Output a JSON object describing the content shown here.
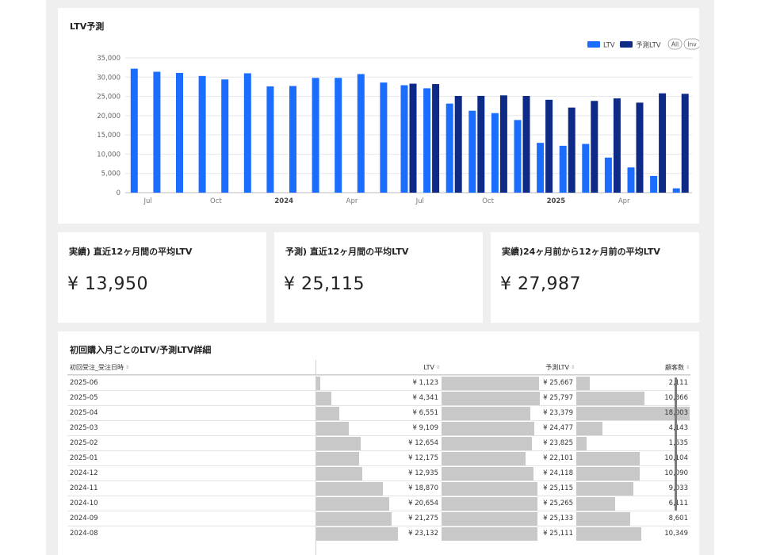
{
  "chart": {
    "title": "LTV予測",
    "legend": [
      {
        "label": "LTV",
        "color": "#1a6dff"
      },
      {
        "label": "予測LTV",
        "color": "#0d2a87"
      }
    ],
    "buttons": {
      "all": "All",
      "inv": "Inv"
    }
  },
  "chart_data": {
    "type": "bar",
    "title": "LTV予測",
    "xlabel": "",
    "ylabel": "",
    "ylim": [
      0,
      35000
    ],
    "y_ticks": [
      "0",
      "5,000",
      "10,000",
      "15,000",
      "20,000",
      "25,000",
      "30,000",
      "35,000"
    ],
    "x_tick_labels": [
      {
        "label": "Jul",
        "month": "2023-07",
        "bold": false
      },
      {
        "label": "Oct",
        "month": "2023-10",
        "bold": false
      },
      {
        "label": "2024",
        "month": "2024-01",
        "bold": true
      },
      {
        "label": "Apr",
        "month": "2024-04",
        "bold": false
      },
      {
        "label": "Jul",
        "month": "2024-07",
        "bold": false
      },
      {
        "label": "Oct",
        "month": "2024-10",
        "bold": false
      },
      {
        "label": "2025",
        "month": "2025-01",
        "bold": true
      },
      {
        "label": "Apr",
        "month": "2025-04",
        "bold": false
      }
    ],
    "categories": [
      "2023-06",
      "2023-07",
      "2023-08",
      "2023-09",
      "2023-10",
      "2023-11",
      "2023-12",
      "2024-01",
      "2024-02",
      "2024-03",
      "2024-04",
      "2024-05",
      "2024-06",
      "2024-07",
      "2024-08",
      "2024-09",
      "2024-10",
      "2024-11",
      "2024-12",
      "2025-01",
      "2025-02",
      "2025-03",
      "2025-04",
      "2025-05",
      "2025-06"
    ],
    "series": [
      {
        "name": "LTV",
        "color": "#1a6dff",
        "values": [
          32200,
          31400,
          31100,
          30300,
          29400,
          31000,
          27600,
          27700,
          29800,
          29800,
          30800,
          28600,
          27900,
          27100,
          23132,
          21275,
          20654,
          18870,
          12935,
          12175,
          12654,
          9109,
          6551,
          4341,
          1123
        ]
      },
      {
        "name": "予測LTV",
        "color": "#0d2a87",
        "values": [
          null,
          null,
          null,
          null,
          null,
          null,
          null,
          null,
          null,
          null,
          null,
          null,
          28300,
          28200,
          25111,
          25133,
          25265,
          25115,
          24118,
          22101,
          23825,
          24477,
          23379,
          25797,
          25667
        ]
      }
    ],
    "grid": true,
    "legend_position": "top-right"
  },
  "kpis": [
    {
      "title": "実績) 直近12ヶ月間の平均LTV",
      "value": "¥ 13,950"
    },
    {
      "title": "予測) 直近12ヶ月間の平均LTV",
      "value": "¥ 25,115"
    },
    {
      "title": "実績)24ヶ月前から12ヶ月前の平均LTV",
      "value": "¥ 27,987"
    }
  ],
  "table": {
    "title": "初回購入月ごとのLTV/予測LTV詳細",
    "columns": [
      "初回受注_受注日時",
      "LTV",
      "予測LTV",
      "顧客数"
    ],
    "max_ltv": 35000,
    "max_pred": 35000,
    "max_customers": 18003,
    "rows": [
      {
        "date": "2025-06",
        "ltv": "¥ 1,123",
        "ltv_n": 1123,
        "pred": "¥ 25,667",
        "pred_n": 25667,
        "cust": "2,111",
        "cust_n": 2111
      },
      {
        "date": "2025-05",
        "ltv": "¥ 4,341",
        "ltv_n": 4341,
        "pred": "¥ 25,797",
        "pred_n": 25797,
        "cust": "10,866",
        "cust_n": 10866
      },
      {
        "date": "2025-04",
        "ltv": "¥ 6,551",
        "ltv_n": 6551,
        "pred": "¥ 23,379",
        "pred_n": 23379,
        "cust": "18,003",
        "cust_n": 18003
      },
      {
        "date": "2025-03",
        "ltv": "¥ 9,109",
        "ltv_n": 9109,
        "pred": "¥ 24,477",
        "pred_n": 24477,
        "cust": "4,143",
        "cust_n": 4143
      },
      {
        "date": "2025-02",
        "ltv": "¥ 12,654",
        "ltv_n": 12654,
        "pred": "¥ 23,825",
        "pred_n": 23825,
        "cust": "1,635",
        "cust_n": 1635
      },
      {
        "date": "2025-01",
        "ltv": "¥ 12,175",
        "ltv_n": 12175,
        "pred": "¥ 22,101",
        "pred_n": 22101,
        "cust": "10,104",
        "cust_n": 10104
      },
      {
        "date": "2024-12",
        "ltv": "¥ 12,935",
        "ltv_n": 12935,
        "pred": "¥ 24,118",
        "pred_n": 24118,
        "cust": "10,090",
        "cust_n": 10090
      },
      {
        "date": "2024-11",
        "ltv": "¥ 18,870",
        "ltv_n": 18870,
        "pred": "¥ 25,115",
        "pred_n": 25115,
        "cust": "9,033",
        "cust_n": 9033
      },
      {
        "date": "2024-10",
        "ltv": "¥ 20,654",
        "ltv_n": 20654,
        "pred": "¥ 25,265",
        "pred_n": 25265,
        "cust": "6,111",
        "cust_n": 6111
      },
      {
        "date": "2024-09",
        "ltv": "¥ 21,275",
        "ltv_n": 21275,
        "pred": "¥ 25,133",
        "pred_n": 25133,
        "cust": "8,601",
        "cust_n": 8601
      },
      {
        "date": "2024-08",
        "ltv": "¥ 23,132",
        "ltv_n": 23132,
        "pred": "¥ 25,111",
        "pred_n": 25111,
        "cust": "10,349",
        "cust_n": 10349
      }
    ]
  }
}
